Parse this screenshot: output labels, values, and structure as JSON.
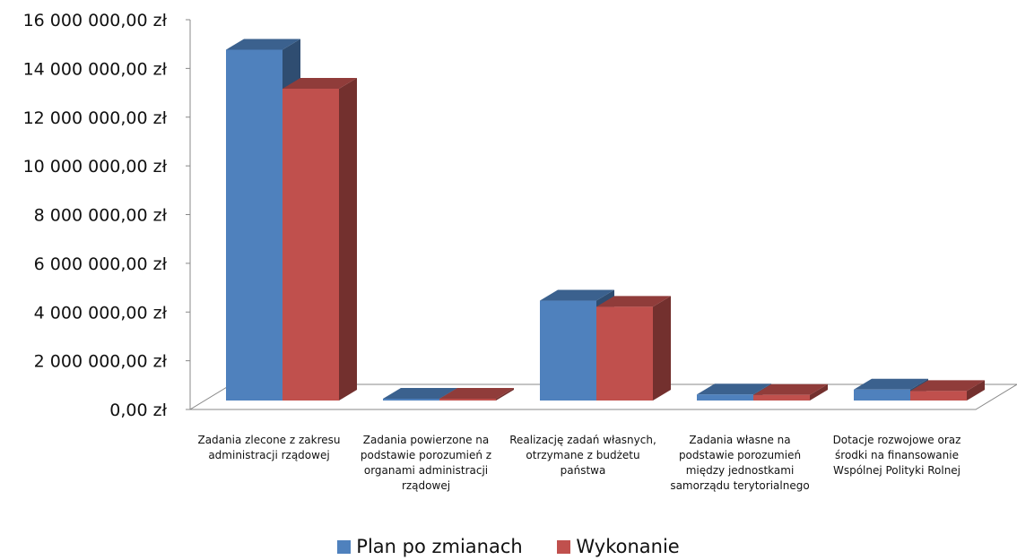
{
  "chart_data": {
    "type": "bar",
    "style": "3d-clustered-column",
    "categories": [
      "Zadania zlecone z zakresu administracji rządowej",
      "Zadania powierzone na podstawie porozumień z organami administracji rządowej",
      "Realizację zadań własnych, otrzymane z budżetu państwa",
      "Zadania własne na podstawie porozumień między jednostkami samorządu terytorialnego",
      "Dotacje rozwojowe oraz środki na finansowanie Wspólnej Polityki Rolnej"
    ],
    "series": [
      {
        "name": "Plan po zmianach",
        "color": "#4F81BD",
        "values": [
          14400000,
          0,
          4100000,
          250000,
          450000
        ]
      },
      {
        "name": "Wykonanie",
        "color": "#C0504D",
        "values": [
          12800000,
          0,
          3850000,
          230000,
          390000
        ]
      }
    ],
    "ylim": [
      0,
      16000000
    ],
    "yticks": [
      "0,00 zł",
      "2 000 000,00 zł",
      "4 000 000,00 zł",
      "6 000 000,00 zł",
      "8 000 000,00 zł",
      "10 000 000,00 zł",
      "12 000 000,00 zł",
      "14 000 000,00 zł",
      "16 000 000,00 zł"
    ],
    "grid": false,
    "legend_position": "bottom",
    "title": "",
    "xlabel": "",
    "ylabel": ""
  }
}
